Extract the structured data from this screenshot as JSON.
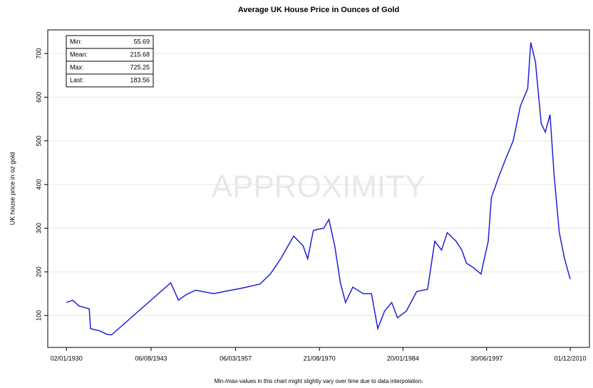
{
  "chart_data": {
    "type": "line",
    "title": "Average UK House Price in Ounces of Gold",
    "y_label": "UK house price in oz gold",
    "footnote": "Min-/max-values in this chart might slightly vary over time due to data interpolation.",
    "watermark": "APPROXIMITY",
    "stats": [
      {
        "label": "Min:",
        "value": 55.69
      },
      {
        "label": "Mean:",
        "value": 215.68
      },
      {
        "label": "Max:",
        "value": 725.25
      },
      {
        "label": "Last:",
        "value": 183.56
      }
    ],
    "grid": true,
    "ylim": [
      27,
      754
    ],
    "yticks": [
      100,
      200,
      300,
      400,
      500,
      600,
      700
    ],
    "xlim": [
      "1927-01-01",
      "2014-01-01"
    ],
    "xticks": [
      {
        "value": "1930-01-02",
        "label": "02/01/1930"
      },
      {
        "value": "1943-08-06",
        "label": "06/08/1943"
      },
      {
        "value": "1957-03-06",
        "label": "06/03/1957"
      },
      {
        "value": "1970-08-21",
        "label": "21/08/1970"
      },
      {
        "value": "1984-01-20",
        "label": "20/01/1984"
      },
      {
        "value": "1997-06-30",
        "label": "30/06/1997"
      },
      {
        "value": "2010-12-01",
        "label": "01/12/2010"
      }
    ],
    "x": [
      "1930-01-02",
      "1931-01-01",
      "1932-01-01",
      "1933-01-01",
      "1933-09-01",
      "1933-11-15",
      "1935-05-01",
      "1936-07-01",
      "1937-04-01",
      "1946-10-01",
      "1948-01-01",
      "1949-04-01",
      "1950-10-01",
      "1953-09-01",
      "1955-05-01",
      "1958-04-01",
      "1961-02-01",
      "1962-10-01",
      "1964-06-01",
      "1966-07-01",
      "1968-01-01",
      "1968-10-01",
      "1969-09-01",
      "1971-05-01",
      "1972-03-01",
      "1973-02-01",
      "1974-01-01",
      "1974-11-01",
      "1976-01-01",
      "1977-09-01",
      "1979-01-01",
      "1980-01-01",
      "1981-02-01",
      "1982-04-01",
      "1983-03-01",
      "1984-08-01",
      "1986-04-01",
      "1988-01-01",
      "1989-03-01",
      "1990-04-01",
      "1991-03-01",
      "1992-08-01",
      "1993-07-01",
      "1994-04-01",
      "1995-05-01",
      "1996-08-01",
      "1997-10-01",
      "1998-04-01",
      "1999-07-01",
      "2000-08-01",
      "2001-10-01",
      "2002-12-01",
      "2004-02-01",
      "2004-08-01",
      "2005-05-01",
      "2006-04-01",
      "2006-12-01",
      "2007-09-01",
      "2008-05-01",
      "2009-03-01",
      "2010-01-01",
      "2010-12-01"
    ],
    "series": [
      {
        "name": "UK house price in oz gold",
        "color": "#1f1fd8",
        "values": [
          130,
          135,
          122,
          118,
          115,
          70,
          65,
          57,
          55.69,
          175,
          135,
          148,
          158,
          150,
          155,
          163,
          172,
          195,
          230,
          282,
          260,
          230,
          295,
          300,
          320,
          260,
          175,
          130,
          165,
          150,
          150,
          70,
          110,
          130,
          95,
          110,
          155,
          160,
          270,
          250,
          290,
          270,
          250,
          220,
          210,
          195,
          270,
          370,
          420,
          460,
          500,
          580,
          620,
          725.25,
          680,
          540,
          520,
          560,
          420,
          290,
          230,
          183.56
        ]
      }
    ]
  }
}
